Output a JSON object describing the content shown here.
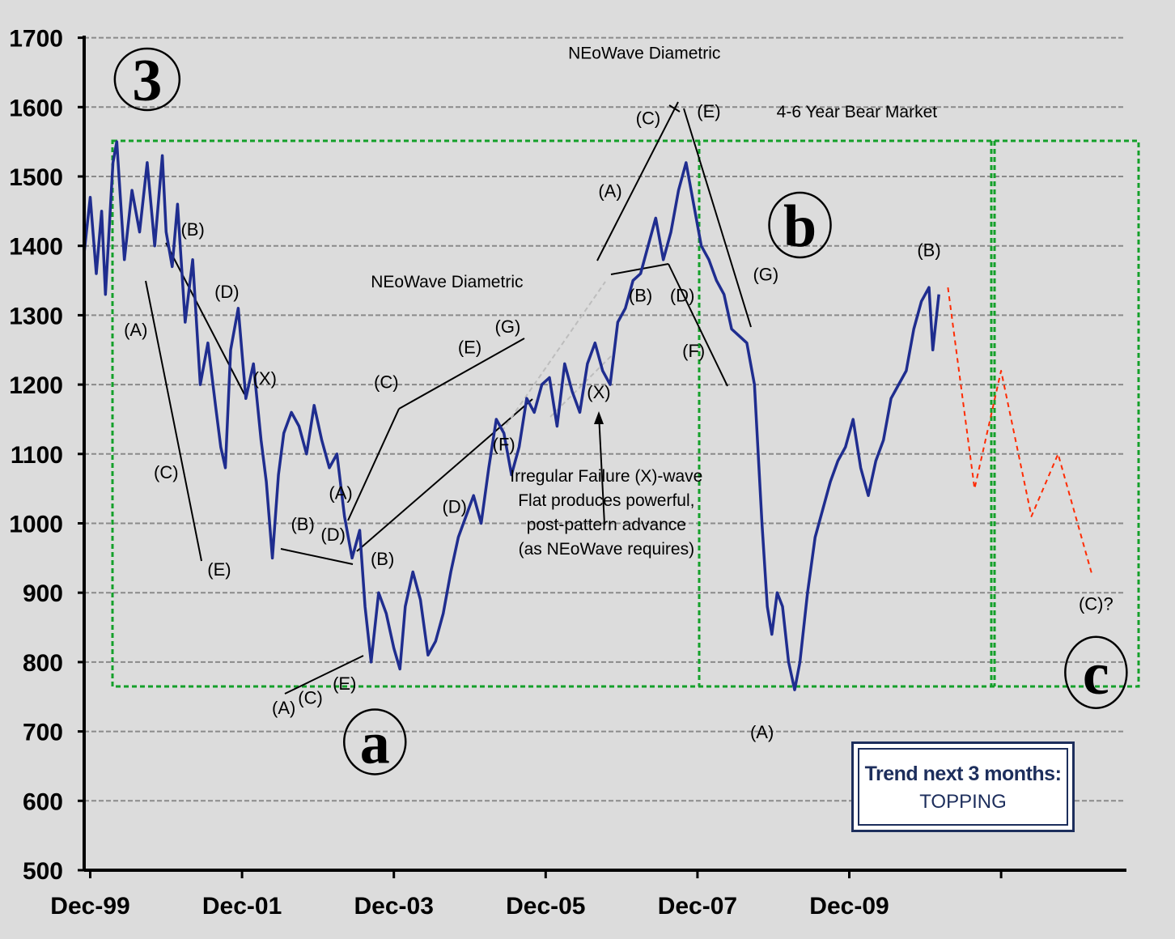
{
  "chart_data": {
    "type": "line",
    "y_ticks": [
      "500",
      "600",
      "700",
      "800",
      "900",
      "1000",
      "1100",
      "1200",
      "1300",
      "1400",
      "1500",
      "1600",
      "1700"
    ],
    "x_ticks": [
      "Dec-99",
      "Dec-01",
      "Dec-03",
      "Dec-05",
      "Dec-07",
      "Dec-09"
    ],
    "ylim": [
      500,
      1700
    ],
    "grid": "horizontal dashed",
    "series": [
      {
        "color": "#1f2d8f",
        "points": [
          [
            1999.92,
            1390
          ],
          [
            2000.0,
            1470
          ],
          [
            2000.08,
            1360
          ],
          [
            2000.15,
            1450
          ],
          [
            2000.2,
            1330
          ],
          [
            2000.3,
            1520
          ],
          [
            2000.35,
            1550
          ],
          [
            2000.45,
            1380
          ],
          [
            2000.55,
            1480
          ],
          [
            2000.65,
            1420
          ],
          [
            2000.75,
            1520
          ],
          [
            2000.85,
            1400
          ],
          [
            2000.95,
            1530
          ],
          [
            2001.0,
            1420
          ],
          [
            2001.08,
            1370
          ],
          [
            2001.15,
            1460
          ],
          [
            2001.25,
            1290
          ],
          [
            2001.35,
            1380
          ],
          [
            2001.45,
            1200
          ],
          [
            2001.55,
            1260
          ],
          [
            2001.65,
            1170
          ],
          [
            2001.72,
            1110
          ],
          [
            2001.78,
            1080
          ],
          [
            2001.85,
            1250
          ],
          [
            2001.95,
            1310
          ],
          [
            2002.05,
            1180
          ],
          [
            2002.15,
            1230
          ],
          [
            2002.25,
            1120
          ],
          [
            2002.32,
            1060
          ],
          [
            2002.4,
            950
          ],
          [
            2002.48,
            1070
          ],
          [
            2002.55,
            1130
          ],
          [
            2002.65,
            1160
          ],
          [
            2002.75,
            1140
          ],
          [
            2002.85,
            1100
          ],
          [
            2002.95,
            1170
          ],
          [
            2003.05,
            1120
          ],
          [
            2003.15,
            1080
          ],
          [
            2003.25,
            1100
          ],
          [
            2003.35,
            1010
          ],
          [
            2003.45,
            950
          ],
          [
            2003.55,
            990
          ],
          [
            2003.62,
            880
          ],
          [
            2003.7,
            800
          ],
          [
            2003.8,
            900
          ],
          [
            2003.9,
            870
          ],
          [
            2004.0,
            820
          ],
          [
            2004.08,
            790
          ],
          [
            2004.15,
            880
          ],
          [
            2004.25,
            930
          ],
          [
            2004.35,
            890
          ],
          [
            2004.45,
            810
          ],
          [
            2004.55,
            830
          ],
          [
            2004.65,
            870
          ],
          [
            2004.75,
            930
          ],
          [
            2004.85,
            980
          ],
          [
            2004.95,
            1010
          ],
          [
            2005.05,
            1040
          ],
          [
            2005.15,
            1000
          ],
          [
            2005.25,
            1080
          ],
          [
            2005.35,
            1150
          ],
          [
            2005.45,
            1130
          ],
          [
            2005.55,
            1070
          ],
          [
            2005.65,
            1110
          ],
          [
            2005.75,
            1180
          ],
          [
            2005.85,
            1160
          ],
          [
            2005.95,
            1200
          ],
          [
            2006.05,
            1210
          ],
          [
            2006.15,
            1140
          ],
          [
            2006.25,
            1230
          ],
          [
            2006.35,
            1190
          ],
          [
            2006.45,
            1160
          ],
          [
            2006.55,
            1230
          ],
          [
            2006.65,
            1260
          ],
          [
            2006.75,
            1220
          ],
          [
            2006.85,
            1200
          ],
          [
            2006.95,
            1290
          ],
          [
            2007.05,
            1310
          ],
          [
            2007.15,
            1350
          ],
          [
            2007.25,
            1360
          ],
          [
            2007.35,
            1400
          ],
          [
            2007.45,
            1440
          ],
          [
            2007.55,
            1380
          ],
          [
            2007.65,
            1420
          ],
          [
            2007.75,
            1480
          ],
          [
            2007.85,
            1520
          ],
          [
            2007.95,
            1460
          ],
          [
            2008.05,
            1400
          ],
          [
            2008.15,
            1380
          ],
          [
            2008.25,
            1350
          ],
          [
            2008.35,
            1330
          ],
          [
            2008.45,
            1280
          ],
          [
            2008.55,
            1270
          ],
          [
            2008.65,
            1260
          ],
          [
            2008.75,
            1200
          ],
          [
            2008.85,
            1000
          ],
          [
            2008.92,
            880
          ],
          [
            2008.98,
            840
          ],
          [
            2009.05,
            900
          ],
          [
            2009.12,
            880
          ],
          [
            2009.2,
            800
          ],
          [
            2009.28,
            760
          ],
          [
            2009.35,
            800
          ],
          [
            2009.45,
            900
          ],
          [
            2009.55,
            980
          ],
          [
            2009.65,
            1020
          ],
          [
            2009.75,
            1060
          ],
          [
            2009.85,
            1090
          ],
          [
            2009.95,
            1110
          ],
          [
            2010.05,
            1150
          ],
          [
            2010.15,
            1080
          ],
          [
            2010.25,
            1040
          ],
          [
            2010.35,
            1090
          ],
          [
            2010.45,
            1120
          ],
          [
            2010.55,
            1180
          ],
          [
            2010.65,
            1200
          ],
          [
            2010.75,
            1220
          ],
          [
            2010.85,
            1280
          ],
          [
            2010.95,
            1320
          ],
          [
            2011.05,
            1340
          ],
          [
            2011.1,
            1250
          ],
          [
            2011.18,
            1330
          ]
        ]
      },
      {
        "color": "#ff2a00",
        "dashed": true,
        "points": [
          [
            2011.3,
            1340
          ],
          [
            2011.65,
            1050
          ],
          [
            2012.0,
            1220
          ],
          [
            2012.4,
            1010
          ],
          [
            2012.75,
            1100
          ],
          [
            2013.2,
            925
          ]
        ]
      }
    ],
    "wave_labels": [
      {
        "text": "(A)",
        "x": 2000.6,
        "y": 1270
      },
      {
        "text": "(B)",
        "x": 2001.35,
        "y": 1415
      },
      {
        "text": "(C)",
        "x": 2001.0,
        "y": 1065
      },
      {
        "text": "(D)",
        "x": 2001.8,
        "y": 1325
      },
      {
        "text": "(E)",
        "x": 2001.7,
        "y": 925
      },
      {
        "text": "(X)",
        "x": 2002.3,
        "y": 1200
      },
      {
        "text": "(A)",
        "x": 2002.55,
        "y": 725
      },
      {
        "text": "(B)",
        "x": 2002.8,
        "y": 990
      },
      {
        "text": "(C)",
        "x": 2002.9,
        "y": 740
      },
      {
        "text": "(D)",
        "x": 2003.2,
        "y": 975
      },
      {
        "text": "(E)",
        "x": 2003.35,
        "y": 760
      },
      {
        "text": "(A)",
        "x": 2003.3,
        "y": 1035
      },
      {
        "text": "(B)",
        "x": 2003.85,
        "y": 940
      },
      {
        "text": "(C)",
        "x": 2003.9,
        "y": 1195
      },
      {
        "text": "(D)",
        "x": 2004.8,
        "y": 1015
      },
      {
        "text": "(E)",
        "x": 2005.0,
        "y": 1245
      },
      {
        "text": "(F)",
        "x": 2005.45,
        "y": 1105
      },
      {
        "text": "(G)",
        "x": 2005.5,
        "y": 1275
      },
      {
        "text": "(X)",
        "x": 2006.7,
        "y": 1180
      },
      {
        "text": "(A)",
        "x": 2006.85,
        "y": 1470
      },
      {
        "text": "(B)",
        "x": 2007.25,
        "y": 1320
      },
      {
        "text": "(C)",
        "x": 2007.35,
        "y": 1575
      },
      {
        "text": "(D)",
        "x": 2007.8,
        "y": 1320
      },
      {
        "text": "(E)",
        "x": 2008.15,
        "y": 1585
      },
      {
        "text": "(F)",
        "x": 2007.95,
        "y": 1240
      },
      {
        "text": "(G)",
        "x": 2008.9,
        "y": 1350
      },
      {
        "text": "(A)",
        "x": 2008.85,
        "y": 690
      },
      {
        "text": "(B)",
        "x": 2011.05,
        "y": 1385
      },
      {
        "text": "(C)?",
        "x": 2013.25,
        "y": 875
      }
    ],
    "big_labels": [
      {
        "text": "3",
        "x": 2000.75,
        "y": 1640
      },
      {
        "text": "a",
        "x": 2003.75,
        "y": 685
      },
      {
        "text": "b",
        "x": 2009.35,
        "y": 1430
      },
      {
        "text": "c",
        "x": 2013.25,
        "y": 785
      }
    ],
    "annotations": [
      {
        "text": "NEoWave Diametric",
        "x": 2004.7,
        "y": 1340
      },
      {
        "text": "NEoWave Diametric",
        "x": 2007.3,
        "y": 1670
      },
      {
        "text": "4-6 Year Bear Market",
        "x": 2010.1,
        "y": 1585
      },
      {
        "text": "Irregular Failure (X)-wave",
        "x": 2006.8,
        "y": 1060
      },
      {
        "text": "Flat produces powerful,",
        "x": 2006.8,
        "y": 1025
      },
      {
        "text": "post-pattern advance",
        "x": 2006.8,
        "y": 990
      },
      {
        "text": "(as NEoWave requires)",
        "x": 2006.8,
        "y": 955
      }
    ]
  },
  "trend_box": {
    "title": "Trend next 3 months:",
    "value": "TOPPING"
  },
  "colors": {
    "background": "#dcdcdc",
    "series": "#1f2d8f",
    "projection": "#ff2a00",
    "box_border": "#14a02a",
    "trend_box": "#1d2e5c"
  }
}
